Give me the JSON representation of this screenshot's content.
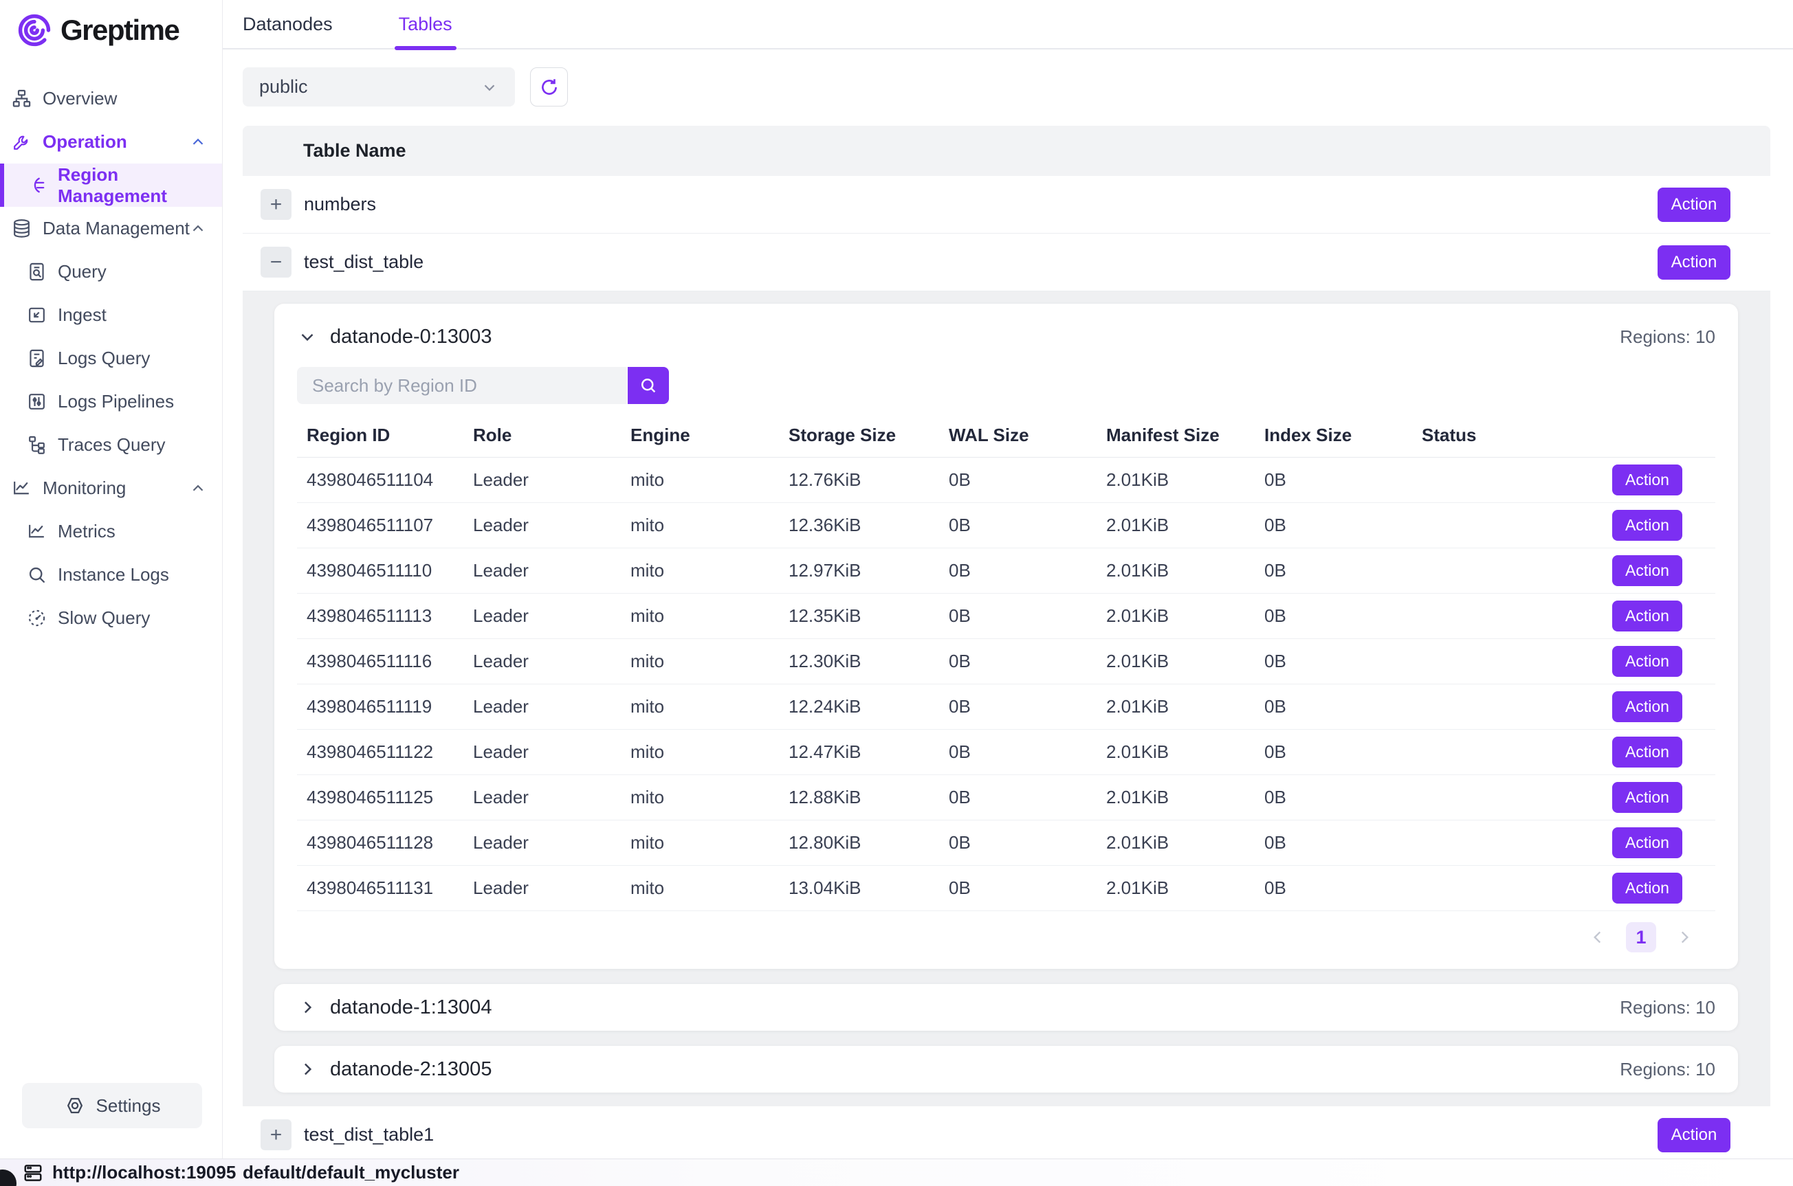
{
  "brand": {
    "name": "Greptime"
  },
  "colors": {
    "accent": "#7c2ff2",
    "panel_gray": "#eff0f2",
    "sidebar_active_bg": "#f5effd"
  },
  "sidebar": {
    "items": [
      {
        "label": "Overview",
        "icon": "overview",
        "sub": false,
        "chevron": false,
        "style": "normal"
      },
      {
        "label": "Operation",
        "icon": "wrench",
        "sub": false,
        "chevron": "up",
        "style": "accent"
      },
      {
        "label": "Region Management",
        "icon": "region",
        "sub": true,
        "chevron": false,
        "style": "active"
      },
      {
        "label": "Data Management",
        "icon": "database",
        "sub": false,
        "chevron": "up",
        "style": "normal"
      },
      {
        "label": "Query",
        "icon": "query",
        "sub": true,
        "chevron": false,
        "style": "normal"
      },
      {
        "label": "Ingest",
        "icon": "ingest",
        "sub": true,
        "chevron": false,
        "style": "normal"
      },
      {
        "label": "Logs Query",
        "icon": "logs-query",
        "sub": true,
        "chevron": false,
        "style": "normal"
      },
      {
        "label": "Logs Pipelines",
        "icon": "pipelines",
        "sub": true,
        "chevron": false,
        "style": "normal"
      },
      {
        "label": "Traces Query",
        "icon": "traces",
        "sub": true,
        "chevron": false,
        "style": "normal"
      },
      {
        "label": "Monitoring",
        "icon": "monitoring",
        "sub": false,
        "chevron": "up",
        "style": "normal"
      },
      {
        "label": "Metrics",
        "icon": "metrics",
        "sub": true,
        "chevron": false,
        "style": "normal"
      },
      {
        "label": "Instance Logs",
        "icon": "instance-logs",
        "sub": true,
        "chevron": false,
        "style": "normal"
      },
      {
        "label": "Slow Query",
        "icon": "slow-query",
        "sub": true,
        "chevron": false,
        "style": "normal"
      }
    ],
    "settings_label": "Settings"
  },
  "tabs": [
    {
      "label": "Datanodes",
      "active": false
    },
    {
      "label": "Tables",
      "active": true
    }
  ],
  "filter": {
    "schema_selected": "public"
  },
  "tables_list": {
    "header": "Table Name",
    "action_label": "Action",
    "rows": [
      {
        "name": "numbers",
        "expand_glyph": "+",
        "expanded": false
      },
      {
        "name": "test_dist_table",
        "expand_glyph": "−",
        "expanded": true
      },
      {
        "name": "test_dist_table1",
        "expand_glyph": "+",
        "expanded": false
      }
    ]
  },
  "datanodes": [
    {
      "title": "datanode-0:13003",
      "regions_label": "Regions: 10",
      "expanded": true
    },
    {
      "title": "datanode-1:13004",
      "regions_label": "Regions: 10",
      "expanded": false
    },
    {
      "title": "datanode-2:13005",
      "regions_label": "Regions: 10",
      "expanded": false
    }
  ],
  "region_table": {
    "search_placeholder": "Search by Region ID",
    "columns": [
      "Region ID",
      "Role",
      "Engine",
      "Storage Size",
      "WAL Size",
      "Manifest Size",
      "Index Size",
      "Status"
    ],
    "action_label": "Action",
    "rows": [
      [
        "4398046511104",
        "Leader",
        "mito",
        "12.76KiB",
        "0B",
        "2.01KiB",
        "0B",
        ""
      ],
      [
        "4398046511107",
        "Leader",
        "mito",
        "12.36KiB",
        "0B",
        "2.01KiB",
        "0B",
        ""
      ],
      [
        "4398046511110",
        "Leader",
        "mito",
        "12.97KiB",
        "0B",
        "2.01KiB",
        "0B",
        ""
      ],
      [
        "4398046511113",
        "Leader",
        "mito",
        "12.35KiB",
        "0B",
        "2.01KiB",
        "0B",
        ""
      ],
      [
        "4398046511116",
        "Leader",
        "mito",
        "12.30KiB",
        "0B",
        "2.01KiB",
        "0B",
        ""
      ],
      [
        "4398046511119",
        "Leader",
        "mito",
        "12.24KiB",
        "0B",
        "2.01KiB",
        "0B",
        ""
      ],
      [
        "4398046511122",
        "Leader",
        "mito",
        "12.47KiB",
        "0B",
        "2.01KiB",
        "0B",
        ""
      ],
      [
        "4398046511125",
        "Leader",
        "mito",
        "12.88KiB",
        "0B",
        "2.01KiB",
        "0B",
        ""
      ],
      [
        "4398046511128",
        "Leader",
        "mito",
        "12.80KiB",
        "0B",
        "2.01KiB",
        "0B",
        ""
      ],
      [
        "4398046511131",
        "Leader",
        "mito",
        "13.04KiB",
        "0B",
        "2.01KiB",
        "0B",
        ""
      ]
    ],
    "pagination": {
      "current": "1"
    }
  },
  "status_bar": {
    "url": "http://localhost:19095",
    "cluster": "default/default_mycluster"
  }
}
